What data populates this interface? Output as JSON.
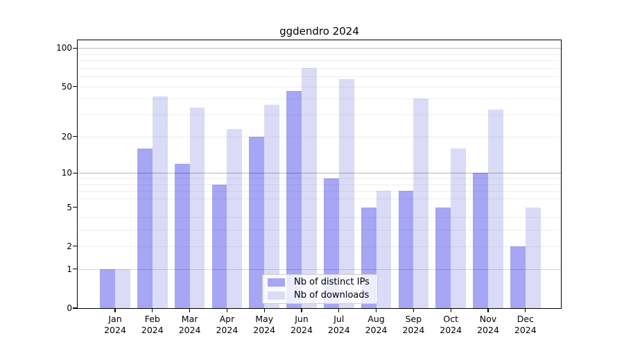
{
  "chart_data": {
    "type": "bar",
    "title": "ggdendro 2024",
    "scale": "log1p",
    "categories": [
      "Jan",
      "Feb",
      "Mar",
      "Apr",
      "May",
      "Jun",
      "Jul",
      "Aug",
      "Sep",
      "Oct",
      "Nov",
      "Dec"
    ],
    "year": "2024",
    "series": [
      {
        "name": "Nb of distinct IPs",
        "color": "#a6a6f5",
        "values": [
          1,
          16,
          12,
          8,
          20,
          46,
          9,
          5,
          7,
          5,
          10,
          2
        ]
      },
      {
        "name": "Nb of downloads",
        "color": "#dbdbf7",
        "values": [
          1,
          42,
          34,
          23,
          36,
          70,
          57,
          7,
          40,
          16,
          33,
          5
        ]
      }
    ],
    "y_ticks": [
      0,
      1,
      2,
      5,
      10,
      20,
      50,
      100
    ],
    "ylim": [
      0,
      115
    ],
    "grid_major": [
      10,
      100
    ],
    "grid_unit": [
      1
    ],
    "grid_minor": [
      2,
      3,
      4,
      6,
      7,
      8,
      9,
      20,
      30,
      40,
      50,
      60,
      70,
      80,
      90
    ],
    "legend_position": "inside-bottom-center",
    "grid": "on"
  }
}
